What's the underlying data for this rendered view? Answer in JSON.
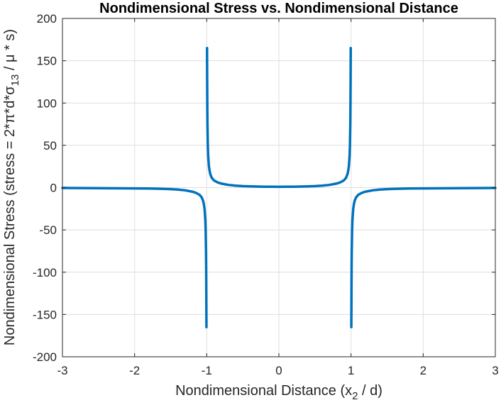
{
  "chart_data": {
    "type": "line",
    "title": "Nondimensional Stress vs. Nondimensional Distance",
    "xlabel": {
      "main": "Nondimensional Distance (x",
      "sub": "2",
      "tail": " / d)"
    },
    "ylabel": {
      "main": "Nondimensional Stress (stress = 2*π*d*σ",
      "sub": "13",
      "tail": " / μ * s)"
    },
    "xlim": [
      -3,
      3
    ],
    "ylim": [
      -200,
      200
    ],
    "xticks": [
      -3,
      -2,
      -1,
      0,
      1,
      2,
      3
    ],
    "yticks": [
      -200,
      -150,
      -100,
      -50,
      0,
      50,
      100,
      150,
      200
    ],
    "grid": true,
    "color": "#0072bd",
    "series": [
      {
        "x": [
          -3,
          -2.8,
          -2.6,
          -2.4,
          -2.2,
          -2.0,
          -1.8,
          -1.6,
          -1.5,
          -1.4,
          -1.3,
          -1.2,
          -1.15,
          -1.1,
          -1.07,
          -1.05,
          -1.04,
          -1.03,
          -1.02,
          -1.015,
          -1.01,
          -1.008,
          -1.006,
          -1.004
        ],
        "y": [
          -0.4,
          -0.5,
          -0.6,
          -0.7,
          -0.8,
          -0.9,
          -1.1,
          -1.5,
          -1.8,
          -2.3,
          -3.2,
          -4.8,
          -6.2,
          -8.5,
          -11.5,
          -15.7,
          -19.5,
          -25.4,
          -37.6,
          -50,
          -75,
          -93,
          -124,
          -165
        ]
      },
      {
        "x": [
          -0.996,
          -0.994,
          -0.992,
          -0.99,
          -0.985,
          -0.98,
          -0.97,
          -0.96,
          -0.95,
          -0.93,
          -0.9,
          -0.85,
          -0.8,
          -0.7,
          -0.6,
          -0.5,
          -0.4,
          -0.3,
          -0.2,
          -0.1,
          0,
          0.1,
          0.2,
          0.3,
          0.4,
          0.5,
          0.6,
          0.7,
          0.8,
          0.85,
          0.9,
          0.93,
          0.95,
          0.96,
          0.97,
          0.98,
          0.985,
          0.99,
          0.992,
          0.994,
          0.996
        ],
        "y": [
          165,
          124,
          93,
          75,
          50,
          37.6,
          25.4,
          19.5,
          15.7,
          11.5,
          8.5,
          6.2,
          4.8,
          3.2,
          2.3,
          1.8,
          1.5,
          1.3,
          1.1,
          1.0,
          0.95,
          1.0,
          1.1,
          1.3,
          1.5,
          1.8,
          2.3,
          3.2,
          4.8,
          6.2,
          8.5,
          11.5,
          15.7,
          19.5,
          25.4,
          37.6,
          50,
          75,
          93,
          124,
          165
        ]
      },
      {
        "x": [
          1.004,
          1.006,
          1.008,
          1.01,
          1.015,
          1.02,
          1.03,
          1.04,
          1.05,
          1.07,
          1.1,
          1.15,
          1.2,
          1.3,
          1.4,
          1.5,
          1.6,
          1.8,
          2.0,
          2.2,
          2.4,
          2.6,
          2.8,
          3.0
        ],
        "y": [
          -165,
          -124,
          -93,
          -75,
          -50,
          -37.6,
          -25.4,
          -19.5,
          -15.7,
          -11.5,
          -8.5,
          -6.2,
          -4.8,
          -3.2,
          -2.3,
          -1.8,
          -1.5,
          -1.1,
          -0.9,
          -0.8,
          -0.7,
          -0.6,
          -0.5,
          -0.4
        ]
      }
    ]
  }
}
